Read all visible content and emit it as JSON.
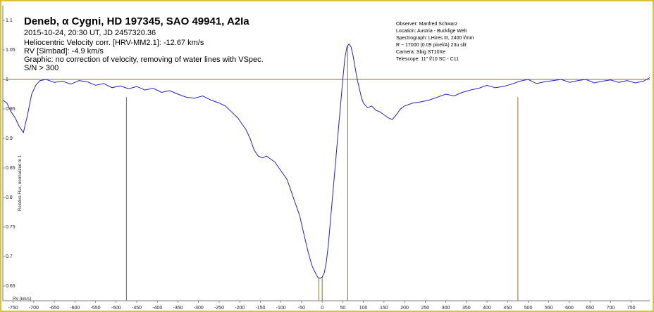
{
  "chart_data": {
    "type": "line",
    "title": "Deneb, α Cygni, HD 197345, SAO 49941, A2Ia",
    "subtitle_lines": [
      "2015-10-24, 20:30 UT, JD 2457320.36",
      "Heliocentric Velocity corr. [HRV-MM2.1]: -12.67 km/s",
      "RV [Simbad]: -4.9 km/s",
      "Graphic: no correction of velocity, removing of water lines with VSpec.",
      "S/N > 300"
    ],
    "info_lines": [
      "Observer: Manfred Schwarz",
      "Location: Austria - Bucklige Welt",
      "Spectrograph: LHires III, 2400 l/mm",
      "R ~ 17000 (0.09 pixel/A) 23u slit",
      "Camera: Sbig ST10Xe",
      "Telescope: 11\" f/10 SC - C11"
    ],
    "xlabel": "RV [km/s]",
    "ylabel": "Relative Flux, normalized to 1",
    "xlim": [
      -775,
      795
    ],
    "ylim": [
      0.625,
      1.125
    ],
    "x_ticks": [
      -750,
      -700,
      -650,
      -600,
      -550,
      -500,
      -450,
      -400,
      -350,
      -300,
      -250,
      -200,
      -150,
      -100,
      -50,
      0,
      50,
      100,
      150,
      200,
      250,
      300,
      350,
      400,
      450,
      500,
      550,
      600,
      650,
      700,
      750
    ],
    "y_ticks": [
      0.65,
      0.7,
      0.75,
      0.8,
      0.85,
      0.9,
      0.95,
      1,
      1.05,
      1.1
    ],
    "y_tick_labels": [
      "0.65",
      "0.7",
      "0.75",
      "0.8",
      "0.85",
      "0.9",
      "0.95",
      "1",
      "1.05",
      "1.1"
    ],
    "continuum_level": 1.0,
    "vertical_markers_rv": [
      -475,
      -8,
      0,
      62,
      475
    ],
    "series": [
      {
        "color": "#2222cc",
        "x": [
          -775,
          -765,
          -755,
          -745,
          -735,
          -725,
          -715,
          -705,
          -695,
          -685,
          -670,
          -650,
          -630,
          -610,
          -590,
          -570,
          -550,
          -530,
          -510,
          -490,
          -470,
          -450,
          -430,
          -410,
          -390,
          -370,
          -350,
          -330,
          -310,
          -290,
          -270,
          -250,
          -235,
          -220,
          -205,
          -195,
          -185,
          -175,
          -165,
          -155,
          -145,
          -135,
          -125,
          -115,
          -105,
          -95,
          -85,
          -75,
          -65,
          -55,
          -45,
          -35,
          -25,
          -15,
          -10,
          -5,
          0,
          5,
          10,
          15,
          20,
          25,
          30,
          35,
          40,
          45,
          50,
          55,
          60,
          65,
          70,
          75,
          80,
          85,
          90,
          95,
          100,
          110,
          120,
          130,
          140,
          150,
          160,
          170,
          180,
          190,
          200,
          220,
          240,
          260,
          280,
          300,
          320,
          340,
          360,
          380,
          400,
          420,
          440,
          460,
          480,
          500,
          520,
          540,
          560,
          580,
          600,
          620,
          640,
          660,
          680,
          700,
          720,
          740,
          760,
          780,
          795
        ],
        "y": [
          0.965,
          0.96,
          0.945,
          0.935,
          0.92,
          0.91,
          0.94,
          0.975,
          0.99,
          0.998,
          1.0,
          0.995,
          0.997,
          0.992,
          0.998,
          0.996,
          0.99,
          0.993,
          0.986,
          0.989,
          0.984,
          0.988,
          0.982,
          0.985,
          0.978,
          0.981,
          0.975,
          0.97,
          0.968,
          0.972,
          0.965,
          0.96,
          0.955,
          0.945,
          0.935,
          0.925,
          0.915,
          0.9,
          0.88,
          0.87,
          0.867,
          0.87,
          0.865,
          0.86,
          0.85,
          0.84,
          0.83,
          0.81,
          0.79,
          0.77,
          0.74,
          0.71,
          0.685,
          0.67,
          0.664,
          0.663,
          0.665,
          0.672,
          0.69,
          0.72,
          0.76,
          0.8,
          0.84,
          0.88,
          0.92,
          0.96,
          1.0,
          1.035,
          1.055,
          1.06,
          1.055,
          1.04,
          1.02,
          1.0,
          0.985,
          0.97,
          0.96,
          0.952,
          0.955,
          0.948,
          0.945,
          0.94,
          0.935,
          0.932,
          0.94,
          0.95,
          0.955,
          0.96,
          0.962,
          0.965,
          0.97,
          0.975,
          0.972,
          0.978,
          0.982,
          0.985,
          0.99,
          0.986,
          0.988,
          0.992,
          0.997,
          1.0,
          0.993,
          0.996,
          0.998,
          1.0,
          0.995,
          0.998,
          1.0,
          0.994,
          0.997,
          0.999,
          0.995,
          0.998,
          0.994,
          0.997,
          1.003
        ]
      }
    ]
  }
}
